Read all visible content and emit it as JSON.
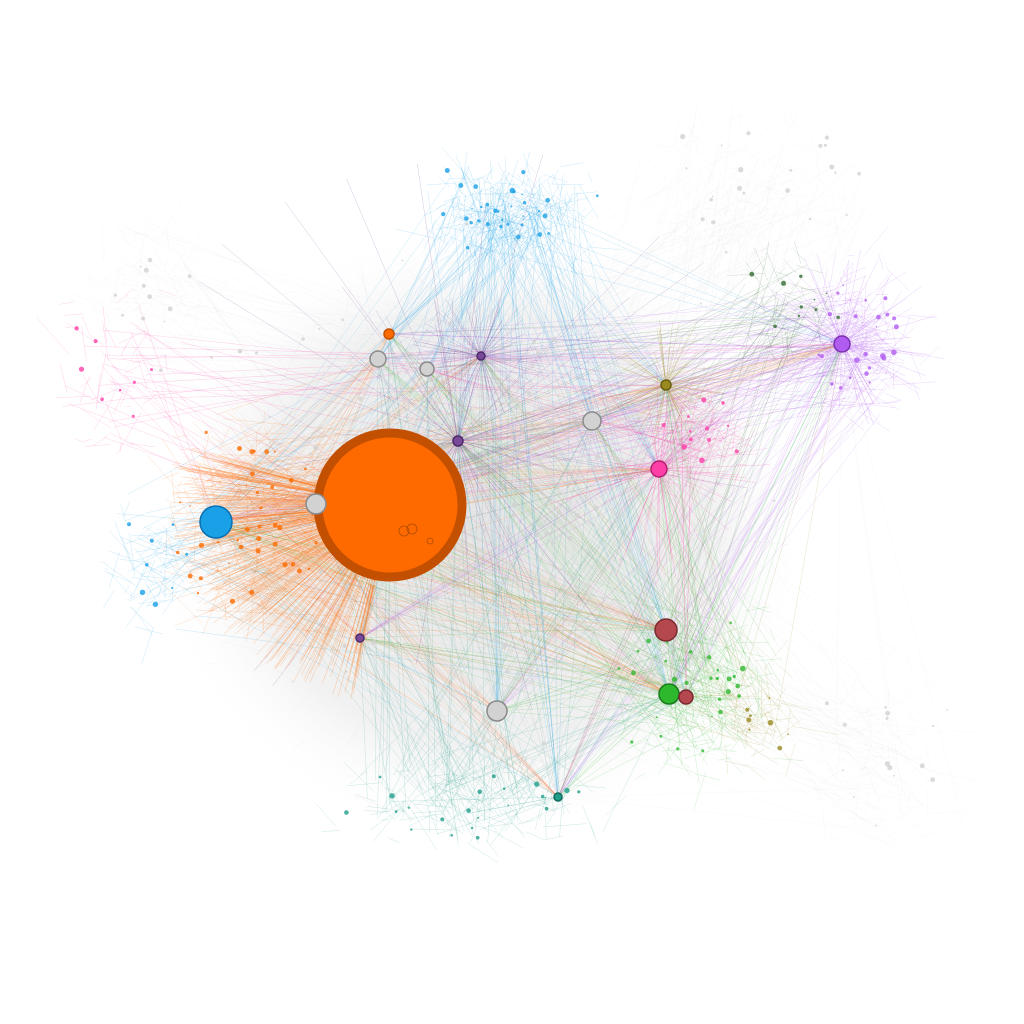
{
  "graph": {
    "background": "#ffffff",
    "edge_base_color": "#9a9a9a",
    "clusters": [
      {
        "id": "orange",
        "color": "#ff6a00",
        "stroke": "#c25000"
      },
      {
        "id": "sky-blue",
        "color": "#1aa0e6",
        "stroke": "#0a6fb0"
      },
      {
        "id": "purple",
        "color": "#b15cf0",
        "stroke": "#7a30b0"
      },
      {
        "id": "magenta",
        "color": "#ff3fa8",
        "stroke": "#b0206e"
      },
      {
        "id": "green",
        "color": "#2eb82e",
        "stroke": "#1a7a1a"
      },
      {
        "id": "dark-green",
        "color": "#2f6b2f",
        "stroke": "#1a401a"
      },
      {
        "id": "teal",
        "color": "#1f9e8a",
        "stroke": "#126b5c"
      },
      {
        "id": "maroon",
        "color": "#b5484f",
        "stroke": "#7a2a30"
      },
      {
        "id": "olive",
        "color": "#9a8a20",
        "stroke": "#6a5e10"
      },
      {
        "id": "violet",
        "color": "#7a4a9a",
        "stroke": "#4e2a6a"
      },
      {
        "id": "grey",
        "color": "#d2d2d2",
        "stroke": "#8a8a8a"
      }
    ],
    "hubs": [
      {
        "cluster": "orange",
        "size": 10
      },
      {
        "cluster": "sky-blue",
        "size": 4
      },
      {
        "cluster": "grey",
        "size": 3
      },
      {
        "cluster": "magenta",
        "size": 3
      },
      {
        "cluster": "maroon",
        "size": 3
      },
      {
        "cluster": "green",
        "size": 3
      },
      {
        "cluster": "purple",
        "size": 2
      },
      {
        "cluster": "grey",
        "size": 2
      },
      {
        "cluster": "grey",
        "size": 2
      },
      {
        "cluster": "grey",
        "size": 2
      },
      {
        "cluster": "maroon",
        "size": 2
      },
      {
        "cluster": "orange",
        "size": 2
      },
      {
        "cluster": "olive",
        "size": 1
      },
      {
        "cluster": "violet",
        "size": 1
      },
      {
        "cluster": "violet",
        "size": 1
      },
      {
        "cluster": "violet",
        "size": 1
      },
      {
        "cluster": "teal",
        "size": 1
      },
      {
        "cluster": "grey",
        "size": 1
      }
    ]
  }
}
